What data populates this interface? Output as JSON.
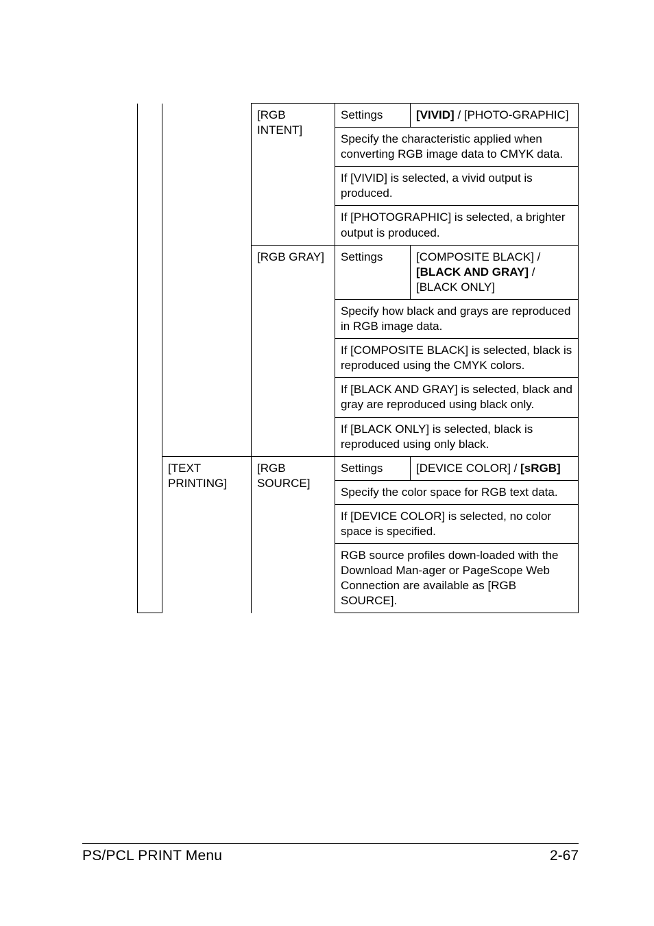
{
  "footer": {
    "title": "PS/PCL PRINT Menu",
    "page": "2-67"
  },
  "cells": {
    "rgb_intent_label": "[RGB INTENT]",
    "rgb_intent_settings_label": "Settings",
    "rgb_intent_settings_value_prefix": "[VIVID]",
    "rgb_intent_settings_value_sep": " / ",
    "rgb_intent_settings_value_suffix": "[PHOTO-GRAPHIC]",
    "rgb_intent_desc1": "Specify the characteristic applied when converting RGB image data to CMYK data.",
    "rgb_intent_desc2": "If [VIVID] is selected, a vivid output is produced.",
    "rgb_intent_desc3": "If [PHOTOGRAPHIC] is selected, a brighter output is produced.",
    "rgb_gray_label": "[RGB GRAY]",
    "rgb_gray_settings_label": "Settings",
    "rgb_gray_settings_value_line1": "[COMPOSITE BLACK] / ",
    "rgb_gray_settings_value_bold": "[BLACK AND GRAY]",
    "rgb_gray_settings_value_line2": " / [BLACK ONLY]",
    "rgb_gray_desc1": "Specify how black and grays are reproduced in RGB image data.",
    "rgb_gray_desc2": "If [COMPOSITE BLACK] is selected, black is reproduced using the CMYK colors.",
    "rgb_gray_desc3": "If [BLACK AND GRAY] is selected, black and gray are reproduced using black only.",
    "rgb_gray_desc4": "If [BLACK ONLY] is selected, black is reproduced using only black.",
    "text_printing_label": "[TEXT PRINTING]",
    "rgb_source_label": "[RGB SOURCE]",
    "rgb_source_settings_label": "Settings",
    "rgb_source_settings_value_pre": "[DEVICE COLOR] / ",
    "rgb_source_settings_value_bold": "[sRGB]",
    "rgb_source_desc1": "Specify the color space for RGB text data.",
    "rgb_source_desc2": "If [DEVICE COLOR] is selected, no color space is specified.",
    "rgb_source_desc3": "RGB source profiles down-loaded with the Download Man-ager or PageScope Web Connection are available as [RGB SOURCE]."
  }
}
